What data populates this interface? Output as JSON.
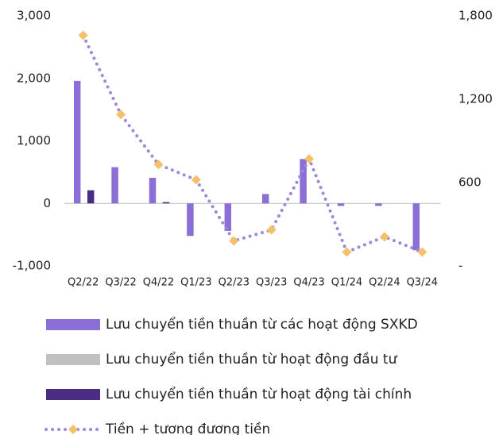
{
  "chart_data": {
    "type": "bar",
    "categories": [
      "Q2/22",
      "Q3/22",
      "Q4/22",
      "Q1/23",
      "Q2/23",
      "Q3/23",
      "Q4/23",
      "Q1/24",
      "Q2/24",
      "Q3/24"
    ],
    "series": [
      {
        "name": "Lưu chuyển tiền thuần từ các hoạt động SXKD",
        "color": "#8b6fd6",
        "values": [
          1960,
          580,
          410,
          -520,
          -440,
          150,
          710,
          -40,
          -40,
          -750
        ]
      },
      {
        "name": "Lưu chuyển tiền thuần từ hoạt động đầu tư",
        "color": "#c0c0c0",
        "values": [
          0,
          0,
          0,
          0,
          0,
          0,
          0,
          0,
          0,
          0
        ]
      },
      {
        "name": "Lưu chuyển tiền thuần từ hoạt động tài chính",
        "color": "#4b2c85",
        "values": [
          210,
          0,
          20,
          0,
          0,
          0,
          0,
          0,
          0,
          0
        ]
      },
      {
        "name": "Tiền + tương đương tiền",
        "type": "line",
        "axis": "y2",
        "color": "#9c88d8",
        "marker_color": "#f4c06a",
        "values": [
          1660,
          1090,
          730,
          620,
          180,
          260,
          770,
          100,
          210,
          100
        ]
      }
    ],
    "ylim": [
      -1000,
      3000
    ],
    "yticks": [
      {
        "value": -1000,
        "label": "-1,000"
      },
      0,
      {
        "value": 1000,
        "label": "1,000"
      },
      {
        "value": 2000,
        "label": "2,000"
      },
      {
        "value": 3000,
        "label": "3,000"
      }
    ],
    "y2lim": [
      0,
      1800
    ],
    "y2ticks": [
      {
        "value": 0,
        "label": "-"
      },
      600,
      {
        "value": 1200,
        "label": "1,200"
      },
      {
        "value": 1800,
        "label": "1,800"
      }
    ]
  }
}
